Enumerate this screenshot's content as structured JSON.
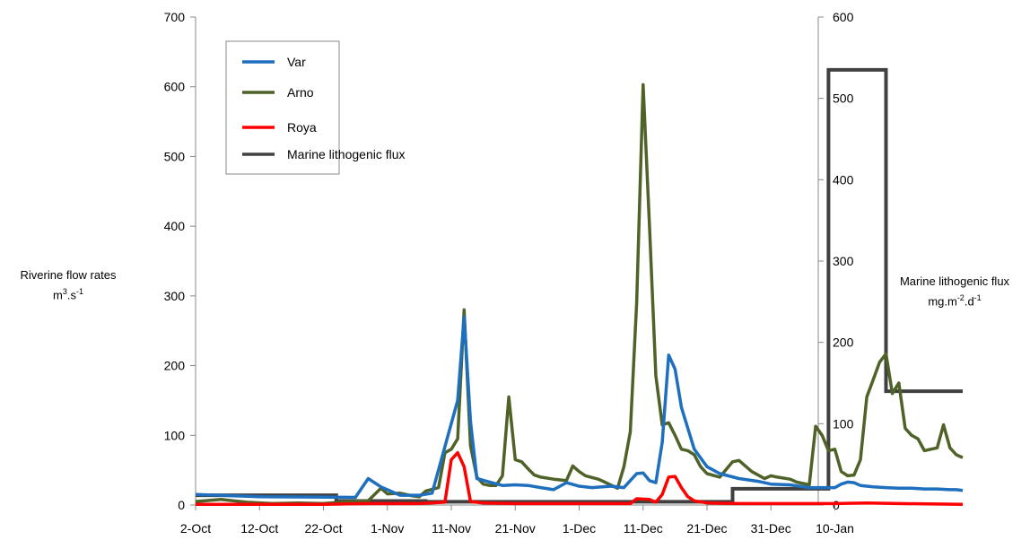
{
  "chart_data": {
    "type": "line",
    "xlabel": "",
    "x_tick_labels": [
      "2-Oct",
      "12-Oct",
      "22-Oct",
      "1-Nov",
      "11-Nov",
      "21-Nov",
      "1-Dec",
      "11-Dec",
      "21-Dec",
      "31-Dec",
      "10-Jan"
    ],
    "x_range": [
      "2-Oct",
      "16-Jan"
    ],
    "y_left": {
      "label_line1": "Riverine flow rates",
      "label_line2_base": "m",
      "label_line2_sup": "3",
      "label_line2_mid": ".s",
      "label_line2_sup2": "-1",
      "ylim": [
        0,
        700
      ],
      "ticks": [
        0,
        100,
        200,
        300,
        400,
        500,
        600,
        700
      ]
    },
    "y_right": {
      "label_line1": "Marine lithogenic flux",
      "label_line2_a": "mg.m",
      "label_line2_sup1": "-2",
      "label_line2_b": ".d",
      "label_line2_sup2": "-1",
      "ylim": [
        0,
        600
      ],
      "ticks": [
        0,
        100,
        200,
        300,
        400,
        500,
        600
      ]
    },
    "grid": false,
    "legend": {
      "placement": "top-left",
      "entries": [
        "Var",
        "Arno",
        "Roya",
        "Marine lithogenic flux"
      ]
    },
    "series": [
      {
        "name": "Var",
        "color": "#1f6fbf",
        "axis": "left",
        "points": [
          [
            0,
            15
          ],
          [
            10,
            12
          ],
          [
            25,
            11
          ],
          [
            27,
            38
          ],
          [
            29,
            26
          ],
          [
            32,
            14
          ],
          [
            35,
            14
          ],
          [
            37,
            17
          ],
          [
            41,
            150
          ],
          [
            42,
            270
          ],
          [
            43,
            120
          ],
          [
            44,
            38
          ],
          [
            46,
            33
          ],
          [
            48,
            28
          ],
          [
            50,
            29
          ],
          [
            52,
            28
          ],
          [
            54,
            25
          ],
          [
            56,
            22
          ],
          [
            58,
            32
          ],
          [
            60,
            27
          ],
          [
            62,
            25
          ],
          [
            65,
            27
          ],
          [
            67,
            25
          ],
          [
            69,
            45
          ],
          [
            70,
            46
          ],
          [
            71,
            35
          ],
          [
            72,
            32
          ],
          [
            73,
            90
          ],
          [
            74,
            215
          ],
          [
            75,
            195
          ],
          [
            76,
            140
          ],
          [
            78,
            80
          ],
          [
            80,
            55
          ],
          [
            82,
            45
          ],
          [
            85,
            38
          ],
          [
            88,
            34
          ],
          [
            90,
            30
          ],
          [
            93,
            29
          ],
          [
            96,
            25
          ],
          [
            99,
            25
          ],
          [
            100,
            25
          ],
          [
            101,
            30
          ],
          [
            102,
            33
          ],
          [
            103,
            32
          ],
          [
            104,
            28
          ],
          [
            106,
            26
          ],
          [
            108,
            25
          ],
          [
            110,
            24
          ],
          [
            112,
            24
          ],
          [
            114,
            23
          ],
          [
            116,
            23
          ],
          [
            118,
            22
          ],
          [
            119,
            22
          ],
          [
            120,
            21
          ]
        ]
      },
      {
        "name": "Arno",
        "color": "#4f6228",
        "axis": "left",
        "points": [
          [
            0,
            5
          ],
          [
            4,
            8
          ],
          [
            8,
            4
          ],
          [
            12,
            2
          ],
          [
            16,
            3
          ],
          [
            20,
            2
          ],
          [
            24,
            5
          ],
          [
            27,
            6
          ],
          [
            29,
            24
          ],
          [
            30,
            16
          ],
          [
            32,
            17
          ],
          [
            34,
            13
          ],
          [
            35,
            12
          ],
          [
            36,
            20
          ],
          [
            38,
            25
          ],
          [
            39,
            75
          ],
          [
            40,
            80
          ],
          [
            41,
            95
          ],
          [
            42,
            280
          ],
          [
            43,
            85
          ],
          [
            44,
            40
          ],
          [
            45,
            30
          ],
          [
            46,
            28
          ],
          [
            47,
            28
          ],
          [
            48,
            42
          ],
          [
            49,
            155
          ],
          [
            50,
            65
          ],
          [
            51,
            62
          ],
          [
            52,
            52
          ],
          [
            53,
            43
          ],
          [
            54,
            40
          ],
          [
            56,
            37
          ],
          [
            58,
            35
          ],
          [
            59,
            56
          ],
          [
            60,
            48
          ],
          [
            61,
            42
          ],
          [
            63,
            37
          ],
          [
            64,
            33
          ],
          [
            66,
            24
          ],
          [
            67,
            55
          ],
          [
            68,
            105
          ],
          [
            69,
            290
          ],
          [
            70,
            603
          ],
          [
            71,
            400
          ],
          [
            72,
            185
          ],
          [
            73,
            115
          ],
          [
            74,
            118
          ],
          [
            75,
            100
          ],
          [
            76,
            80
          ],
          [
            77,
            78
          ],
          [
            78,
            72
          ],
          [
            79,
            55
          ],
          [
            80,
            45
          ],
          [
            82,
            40
          ],
          [
            84,
            62
          ],
          [
            85,
            64
          ],
          [
            87,
            48
          ],
          [
            89,
            38
          ],
          [
            90,
            42
          ],
          [
            91,
            40
          ],
          [
            93,
            37
          ],
          [
            94,
            33
          ],
          [
            96,
            29
          ],
          [
            97,
            113
          ],
          [
            98,
            100
          ],
          [
            99,
            78
          ],
          [
            100,
            80
          ],
          [
            101,
            48
          ],
          [
            102,
            42
          ],
          [
            103,
            43
          ],
          [
            104,
            65
          ],
          [
            105,
            155
          ],
          [
            106,
            180
          ],
          [
            107,
            205
          ],
          [
            108,
            217
          ],
          [
            109,
            160
          ],
          [
            110,
            175
          ],
          [
            111,
            110
          ],
          [
            112,
            100
          ],
          [
            113,
            95
          ],
          [
            114,
            78
          ],
          [
            115,
            80
          ],
          [
            116,
            82
          ],
          [
            117,
            115
          ],
          [
            118,
            82
          ],
          [
            119,
            72
          ],
          [
            120,
            68
          ]
        ]
      },
      {
        "name": "Roya",
        "color": "#ff0000",
        "axis": "left",
        "points": [
          [
            0,
            1
          ],
          [
            10,
            1
          ],
          [
            20,
            1
          ],
          [
            27,
            2
          ],
          [
            30,
            2
          ],
          [
            35,
            2
          ],
          [
            39,
            4
          ],
          [
            40,
            65
          ],
          [
            41,
            75
          ],
          [
            42,
            55
          ],
          [
            43,
            5
          ],
          [
            45,
            3
          ],
          [
            50,
            2
          ],
          [
            55,
            2
          ],
          [
            60,
            2
          ],
          [
            65,
            2
          ],
          [
            68,
            2
          ],
          [
            69,
            9
          ],
          [
            71,
            8
          ],
          [
            72,
            4
          ],
          [
            73,
            15
          ],
          [
            74,
            40
          ],
          [
            75,
            41
          ],
          [
            76,
            25
          ],
          [
            77,
            12
          ],
          [
            78,
            6
          ],
          [
            80,
            3
          ],
          [
            85,
            2
          ],
          [
            90,
            2
          ],
          [
            100,
            2
          ],
          [
            105,
            3
          ],
          [
            110,
            2
          ],
          [
            120,
            1
          ]
        ]
      },
      {
        "name": "Marine lithogenic flux",
        "color": "#404040",
        "axis": "right",
        "points": [
          [
            0,
            12
          ],
          [
            10,
            12
          ],
          [
            22,
            12
          ],
          [
            22,
            5
          ],
          [
            36,
            5
          ],
          [
            36,
            4
          ],
          [
            84,
            4
          ],
          [
            84,
            20
          ],
          [
            89,
            20
          ],
          [
            89,
            20
          ],
          [
            99,
            20
          ],
          [
            99,
            535
          ],
          [
            108,
            535
          ],
          [
            108,
            140
          ],
          [
            120,
            140
          ]
        ]
      }
    ]
  }
}
